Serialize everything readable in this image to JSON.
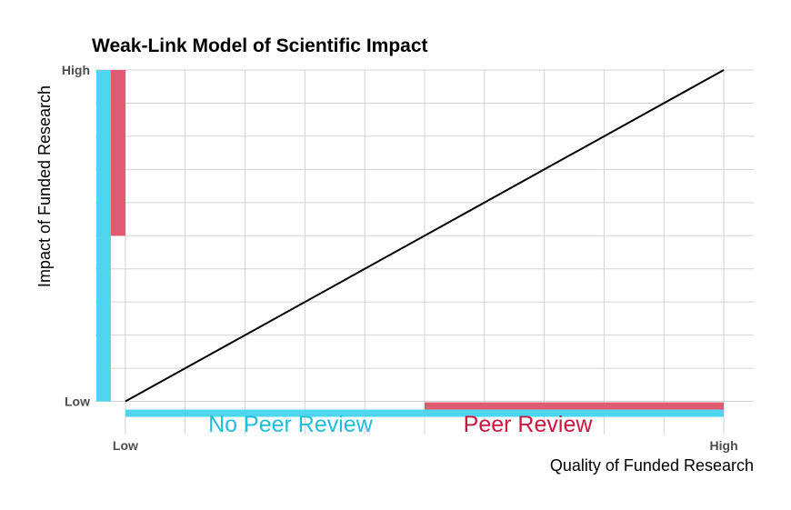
{
  "chart_data": {
    "type": "line",
    "title": "Weak-Link Model of Scientific Impact",
    "xlabel": "Quality of Funded Research",
    "ylabel": "Impact of Funded Research",
    "x_tick_labels": [
      "Low",
      "High"
    ],
    "y_tick_labels": [
      "Low",
      "High"
    ],
    "xlim": [
      -0.05,
      1.05
    ],
    "ylim": [
      -0.1,
      1.0
    ],
    "grid": true,
    "series": [
      {
        "x": [
          0,
          1
        ],
        "y": [
          0,
          1
        ],
        "color": "#000000"
      }
    ],
    "ranges": {
      "no_peer_review": {
        "label": "No Peer Review",
        "color": "#4dd6ee",
        "quality_range": [
          0.0,
          1.0
        ],
        "impact_range": [
          0.0,
          1.0
        ]
      },
      "peer_review": {
        "label": "Peer Review",
        "color": "#e05a72",
        "quality_range": [
          0.5,
          1.0
        ],
        "impact_range": [
          0.5,
          1.0
        ]
      }
    },
    "label_colors": {
      "no_peer_review": "#1fbfde",
      "peer_review": "#c9173f"
    }
  }
}
